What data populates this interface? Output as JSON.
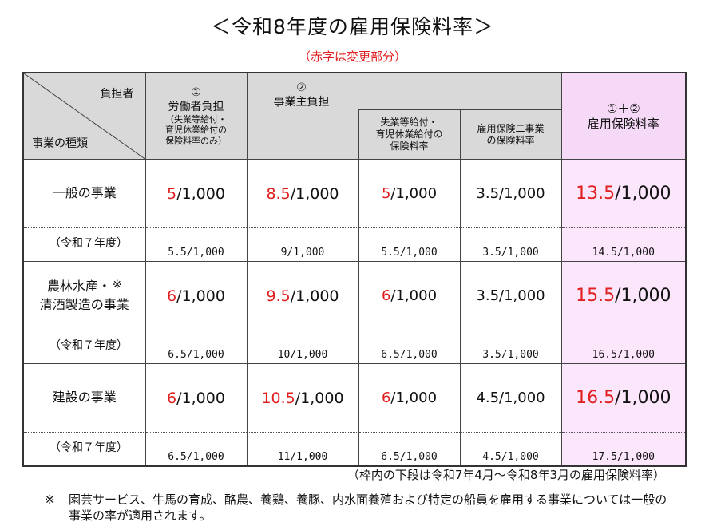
{
  "title": "＜令和8年度の雇用保険料率＞",
  "subtitle": "（赤字は変更部分）",
  "header": {
    "corner_top": "負担者",
    "corner_bottom": "事業の種類",
    "worker_num": "①",
    "worker_label": "労働者負担",
    "worker_sub1": "（失業等給付・",
    "worker_sub2": "育児休業給付の",
    "worker_sub3": "保険料率のみ）",
    "employer_num": "②",
    "employer_label": "事業主負担",
    "emp_sub1_line1": "失業等給付・",
    "emp_sub1_line2": "育児休業給付の",
    "emp_sub1_line3": "保険料率",
    "emp_sub2_line1": "雇用保険二事業",
    "emp_sub2_line2": "の保険料率",
    "total_num": "①＋②",
    "total_label": "雇用保険料率"
  },
  "prev_label": "（令和７年度）",
  "rows": [
    {
      "category_line1": "一般の事業",
      "category_line2": "",
      "mark": "",
      "worker": {
        "red": "5",
        "rest": "/1,000"
      },
      "employer": {
        "red": "8.5",
        "rest": "/1,000"
      },
      "emp_unemp": {
        "red": "5",
        "rest": "/1,000"
      },
      "emp_two": "3.5/1,000",
      "total": {
        "red": "13.5",
        "rest": "/1,000"
      },
      "prev": {
        "worker": "5.5/1,000",
        "employer": "9/1,000",
        "emp_unemp": "5.5/1,000",
        "emp_two": "3.5/1,000",
        "total": "14.5/1,000"
      }
    },
    {
      "category_line1": "農林水産・",
      "category_line2": "清酒製造の事業",
      "mark": "※",
      "worker": {
        "red": "6",
        "rest": "/1,000"
      },
      "employer": {
        "red": "9.5",
        "rest": "/1,000"
      },
      "emp_unemp": {
        "red": "6",
        "rest": "/1,000"
      },
      "emp_two": "3.5/1,000",
      "total": {
        "red": "15.5",
        "rest": "/1,000"
      },
      "prev": {
        "worker": "6.5/1,000",
        "employer": "10/1,000",
        "emp_unemp": "6.5/1,000",
        "emp_two": "3.5/1,000",
        "total": "16.5/1,000"
      }
    },
    {
      "category_line1": "建設の事業",
      "category_line2": "",
      "mark": "",
      "worker": {
        "red": "6",
        "rest": "/1,000"
      },
      "employer": {
        "red": "10.5",
        "rest": "/1,000"
      },
      "emp_unemp": {
        "red": "6",
        "rest": "/1,000"
      },
      "emp_two": "4.5/1,000",
      "total": {
        "red": "16.5",
        "rest": "/1,000"
      },
      "prev": {
        "worker": "6.5/1,000",
        "employer": "11/1,000",
        "emp_unemp": "6.5/1,000",
        "emp_two": "4.5/1,000",
        "total": "17.5/1,000"
      }
    }
  ],
  "note_lower": "（枠内の下段は令和7年4月～令和8年3月の雇用保険料率）",
  "footnote_mark": "※",
  "footnote_text": "園芸サービス、牛馬の育成、酪農、養鶏、養豚、内水面養殖および特定の船員を雇用する事業については一般の事業の率が適用されます。",
  "colors": {
    "red": "#e02020",
    "header_gray": "#d9d9d9",
    "pink": "#fce6fc"
  }
}
